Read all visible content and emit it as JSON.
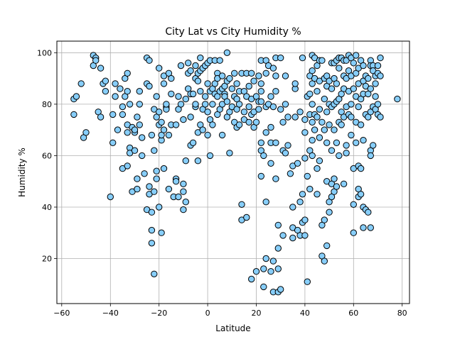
{
  "chart_data": {
    "type": "scatter",
    "title": "City Lat vs City Humidity %",
    "xlabel": "Latitude",
    "ylabel": "Humidity %",
    "xlim": [
      -62,
      83
    ],
    "ylim": [
      2.5,
      104.5
    ],
    "xticks": [
      -60,
      -40,
      -20,
      0,
      20,
      40,
      60,
      80
    ],
    "yticks": [
      20,
      40,
      60,
      80,
      100
    ],
    "grid": true,
    "legend": "none",
    "marker_fill": "#87cefa",
    "marker_edge": "#000000",
    "points": [
      [
        -55,
        82
      ],
      [
        -55,
        76
      ],
      [
        -54,
        83
      ],
      [
        -52,
        88
      ],
      [
        -51,
        67
      ],
      [
        -50,
        69
      ],
      [
        -47,
        99
      ],
      [
        -47,
        95
      ],
      [
        -46,
        98
      ],
      [
        -46,
        97
      ],
      [
        -45,
        77
      ],
      [
        -44,
        75
      ],
      [
        -44,
        94
      ],
      [
        -43,
        88
      ],
      [
        -42,
        85
      ],
      [
        -42,
        89
      ],
      [
        -40,
        44
      ],
      [
        -39,
        65
      ],
      [
        -39,
        76
      ],
      [
        -38,
        88
      ],
      [
        -38,
        83
      ],
      [
        -37,
        70
      ],
      [
        -36,
        86
      ],
      [
        -35,
        76
      ],
      [
        -35,
        79
      ],
      [
        -35,
        55
      ],
      [
        -34,
        90
      ],
      [
        -34,
        83
      ],
      [
        -33,
        92
      ],
      [
        -33,
        85
      ],
      [
        -33,
        72
      ],
      [
        -33,
        56
      ],
      [
        -33,
        69
      ],
      [
        -32,
        63
      ],
      [
        -32,
        61
      ],
      [
        -32,
        80
      ],
      [
        -31,
        46
      ],
      [
        -31,
        71
      ],
      [
        -30,
        62
      ],
      [
        -30,
        69
      ],
      [
        -30,
        70
      ],
      [
        -29,
        47
      ],
      [
        -29,
        51
      ],
      [
        -29,
        75
      ],
      [
        -28,
        80
      ],
      [
        -28,
        72
      ],
      [
        -28,
        85
      ],
      [
        -27,
        67
      ],
      [
        -27,
        60
      ],
      [
        -26,
        53
      ],
      [
        -25,
        88
      ],
      [
        -25,
        98
      ],
      [
        -25,
        39
      ],
      [
        -24,
        97
      ],
      [
        -24,
        87
      ],
      [
        -24,
        45
      ],
      [
        -24,
        48
      ],
      [
        -23,
        26
      ],
      [
        -23,
        31
      ],
      [
        -23,
        38
      ],
      [
        -23,
        68
      ],
      [
        -22,
        14
      ],
      [
        -22,
        62
      ],
      [
        -22,
        78
      ],
      [
        -22,
        46
      ],
      [
        -21,
        75
      ],
      [
        -21,
        54
      ],
      [
        -21,
        51
      ],
      [
        -21,
        83
      ],
      [
        -20,
        72
      ],
      [
        -20,
        94
      ],
      [
        -20,
        40
      ],
      [
        -20,
        77
      ],
      [
        -19,
        73
      ],
      [
        -19,
        66
      ],
      [
        -19,
        30
      ],
      [
        -19,
        68
      ],
      [
        -18,
        88
      ],
      [
        -18,
        70
      ],
      [
        -18,
        91
      ],
      [
        -18,
        55
      ],
      [
        -17,
        79
      ],
      [
        -17,
        78
      ],
      [
        -17,
        80
      ],
      [
        -16,
        68
      ],
      [
        -16,
        47
      ],
      [
        -16,
        92
      ],
      [
        -15,
        90
      ],
      [
        -15,
        72
      ],
      [
        -15,
        84
      ],
      [
        -14,
        44
      ],
      [
        -13,
        72
      ],
      [
        -13,
        51
      ],
      [
        -13,
        50
      ],
      [
        -12,
        44
      ],
      [
        -12,
        78
      ],
      [
        -12,
        83
      ],
      [
        -11,
        80
      ],
      [
        -11,
        95
      ],
      [
        -10,
        74
      ],
      [
        -10,
        49
      ],
      [
        -10,
        46
      ],
      [
        -10,
        39
      ],
      [
        -9,
        42
      ],
      [
        -9,
        58
      ],
      [
        -9,
        82
      ],
      [
        -8,
        96
      ],
      [
        -8,
        92
      ],
      [
        -8,
        86
      ],
      [
        -7,
        93
      ],
      [
        -7,
        75
      ],
      [
        -7,
        84
      ],
      [
        -7,
        64
      ],
      [
        -6,
        65
      ],
      [
        -6,
        84
      ],
      [
        -5,
        90
      ],
      [
        -5,
        95
      ],
      [
        -5,
        79
      ],
      [
        -5,
        80
      ],
      [
        -4,
        89
      ],
      [
        -4,
        92
      ],
      [
        -4,
        58
      ],
      [
        -4,
        69
      ],
      [
        -3,
        98
      ],
      [
        -3,
        93
      ],
      [
        -3,
        85
      ],
      [
        -3,
        72
      ],
      [
        -2,
        94
      ],
      [
        -2,
        78
      ],
      [
        -2,
        70
      ],
      [
        -1,
        83
      ],
      [
        -1,
        80
      ],
      [
        -1,
        95
      ],
      [
        0,
        96
      ],
      [
        0,
        88
      ],
      [
        0,
        77
      ],
      [
        0,
        68
      ],
      [
        1,
        97
      ],
      [
        1,
        85
      ],
      [
        1,
        74
      ],
      [
        1,
        60
      ],
      [
        2,
        86
      ],
      [
        2,
        80
      ],
      [
        2,
        72
      ],
      [
        3,
        97
      ],
      [
        3,
        88
      ],
      [
        3,
        84
      ],
      [
        4,
        92
      ],
      [
        4,
        90
      ],
      [
        4,
        83
      ],
      [
        4,
        76
      ],
      [
        5,
        97
      ],
      [
        5,
        85
      ],
      [
        5,
        78
      ],
      [
        6,
        91
      ],
      [
        6,
        86
      ],
      [
        6,
        80
      ],
      [
        6,
        68
      ],
      [
        7,
        87
      ],
      [
        7,
        84
      ],
      [
        7,
        83
      ],
      [
        8,
        100
      ],
      [
        8,
        89
      ],
      [
        8,
        81
      ],
      [
        8,
        75
      ],
      [
        9,
        90
      ],
      [
        9,
        77
      ],
      [
        9,
        61
      ],
      [
        10,
        86
      ],
      [
        10,
        79
      ],
      [
        11,
        92
      ],
      [
        11,
        83
      ],
      [
        11,
        73
      ],
      [
        12,
        88
      ],
      [
        12,
        82
      ],
      [
        12,
        78
      ],
      [
        12,
        71
      ],
      [
        13,
        85
      ],
      [
        13,
        80
      ],
      [
        13,
        72
      ],
      [
        14,
        92
      ],
      [
        14,
        41
      ],
      [
        14,
        35
      ],
      [
        15,
        85
      ],
      [
        15,
        77
      ],
      [
        15,
        74
      ],
      [
        16,
        92
      ],
      [
        16,
        83
      ],
      [
        16,
        36
      ],
      [
        17,
        87
      ],
      [
        17,
        79
      ],
      [
        17,
        73
      ],
      [
        18,
        92
      ],
      [
        18,
        82
      ],
      [
        18,
        76
      ],
      [
        18,
        12
      ],
      [
        19,
        89
      ],
      [
        19,
        77
      ],
      [
        19,
        71
      ],
      [
        20,
        83
      ],
      [
        20,
        73
      ],
      [
        20,
        15
      ],
      [
        21,
        91
      ],
      [
        21,
        81
      ],
      [
        21,
        78
      ],
      [
        22,
        97
      ],
      [
        22,
        88
      ],
      [
        22,
        85
      ],
      [
        22,
        81
      ],
      [
        22,
        65
      ],
      [
        22,
        62
      ],
      [
        22,
        52
      ],
      [
        23,
        9
      ],
      [
        23,
        16
      ],
      [
        23,
        60
      ],
      [
        24,
        97
      ],
      [
        24,
        92
      ],
      [
        24,
        79
      ],
      [
        24,
        69
      ],
      [
        24,
        42
      ],
      [
        24,
        20
      ],
      [
        25,
        95
      ],
      [
        25,
        80
      ],
      [
        26,
        83
      ],
      [
        26,
        71
      ],
      [
        26,
        15
      ],
      [
        26,
        65
      ],
      [
        26,
        57
      ],
      [
        27,
        7
      ],
      [
        27,
        19
      ],
      [
        27,
        94
      ],
      [
        27,
        79
      ],
      [
        28,
        98
      ],
      [
        28,
        85
      ],
      [
        28,
        91
      ],
      [
        28,
        65
      ],
      [
        28,
        51
      ],
      [
        29,
        16
      ],
      [
        29,
        24
      ],
      [
        29,
        33
      ],
      [
        29,
        7
      ],
      [
        30,
        98
      ],
      [
        30,
        78
      ],
      [
        30,
        8
      ],
      [
        31,
        73
      ],
      [
        31,
        62
      ],
      [
        31,
        29
      ],
      [
        32,
        80
      ],
      [
        32,
        61
      ],
      [
        32,
        91
      ],
      [
        33,
        75
      ],
      [
        33,
        64
      ],
      [
        34,
        53
      ],
      [
        35,
        56
      ],
      [
        35,
        40
      ],
      [
        35,
        28
      ],
      [
        35,
        32
      ],
      [
        36,
        86
      ],
      [
        36,
        75
      ],
      [
        36,
        88
      ],
      [
        37,
        31
      ],
      [
        37,
        57
      ],
      [
        38,
        77
      ],
      [
        38,
        42
      ],
      [
        38,
        29
      ],
      [
        39,
        45
      ],
      [
        39,
        34
      ],
      [
        39,
        98
      ],
      [
        40,
        29
      ],
      [
        40,
        74
      ],
      [
        40,
        59
      ],
      [
        40,
        69
      ],
      [
        40,
        35
      ],
      [
        41,
        83
      ],
      [
        41,
        11
      ],
      [
        41,
        52
      ],
      [
        42,
        84
      ],
      [
        42,
        76
      ],
      [
        42,
        91
      ],
      [
        42,
        62
      ],
      [
        42,
        47
      ],
      [
        43,
        99
      ],
      [
        43,
        93
      ],
      [
        43,
        88
      ],
      [
        43,
        80
      ],
      [
        43,
        73
      ],
      [
        43,
        66
      ],
      [
        43,
        60
      ],
      [
        44,
        98
      ],
      [
        44,
        90
      ],
      [
        44,
        76
      ],
      [
        44,
        70
      ],
      [
        45,
        95
      ],
      [
        45,
        85
      ],
      [
        45,
        75
      ],
      [
        45,
        55
      ],
      [
        45,
        45
      ],
      [
        46,
        97
      ],
      [
        46,
        89
      ],
      [
        46,
        78
      ],
      [
        46,
        67
      ],
      [
        46,
        58
      ],
      [
        47,
        97
      ],
      [
        47,
        73
      ],
      [
        47,
        33
      ],
      [
        47,
        21
      ],
      [
        48,
        90
      ],
      [
        48,
        82
      ],
      [
        48,
        70
      ],
      [
        48,
        35
      ],
      [
        48,
        19
      ],
      [
        49,
        91
      ],
      [
        49,
        87
      ],
      [
        49,
        77
      ],
      [
        49,
        65
      ],
      [
        49,
        50
      ],
      [
        49,
        25
      ],
      [
        50,
        89
      ],
      [
        50,
        80
      ],
      [
        50,
        72
      ],
      [
        50,
        42
      ],
      [
        50,
        38
      ],
      [
        51,
        96
      ],
      [
        51,
        86
      ],
      [
        51,
        79
      ],
      [
        51,
        62
      ],
      [
        51,
        49
      ],
      [
        51,
        44
      ],
      [
        52,
        96
      ],
      [
        52,
        90
      ],
      [
        52,
        80
      ],
      [
        52,
        70
      ],
      [
        52,
        51
      ],
      [
        52,
        46
      ],
      [
        53,
        97
      ],
      [
        53,
        88
      ],
      [
        53,
        81
      ],
      [
        53,
        65
      ],
      [
        53,
        48
      ],
      [
        54,
        98
      ],
      [
        54,
        94
      ],
      [
        54,
        82
      ],
      [
        54,
        73
      ],
      [
        54,
        60
      ],
      [
        55,
        98
      ],
      [
        55,
        84
      ],
      [
        55,
        77
      ],
      [
        55,
        72
      ],
      [
        56,
        97
      ],
      [
        56,
        91
      ],
      [
        56,
        86
      ],
      [
        56,
        75
      ],
      [
        56,
        49
      ],
      [
        57,
        97
      ],
      [
        57,
        90
      ],
      [
        57,
        79
      ],
      [
        57,
        64
      ],
      [
        57,
        61
      ],
      [
        58,
        99
      ],
      [
        58,
        93
      ],
      [
        58,
        85
      ],
      [
        58,
        76
      ],
      [
        59,
        98
      ],
      [
        59,
        91
      ],
      [
        59,
        80
      ],
      [
        59,
        75
      ],
      [
        59,
        68
      ],
      [
        60,
        96
      ],
      [
        60,
        86
      ],
      [
        60,
        55
      ],
      [
        60,
        41
      ],
      [
        60,
        30
      ],
      [
        61,
        99
      ],
      [
        61,
        92
      ],
      [
        61,
        83
      ],
      [
        61,
        73
      ],
      [
        61,
        65
      ],
      [
        62,
        94
      ],
      [
        62,
        88
      ],
      [
        62,
        79
      ],
      [
        62,
        56
      ],
      [
        62,
        47
      ],
      [
        62,
        44
      ],
      [
        63,
        97
      ],
      [
        63,
        82
      ],
      [
        63,
        72
      ],
      [
        63,
        55
      ],
      [
        63,
        45
      ],
      [
        64,
        95
      ],
      [
        64,
        89
      ],
      [
        64,
        84
      ],
      [
        64,
        66
      ],
      [
        64,
        40
      ],
      [
        64,
        32
      ],
      [
        65,
        91
      ],
      [
        65,
        87
      ],
      [
        65,
        76
      ],
      [
        65,
        39
      ],
      [
        66,
        90
      ],
      [
        66,
        84
      ],
      [
        66,
        75
      ],
      [
        66,
        38
      ],
      [
        67,
        97
      ],
      [
        67,
        95
      ],
      [
        67,
        86
      ],
      [
        67,
        77
      ],
      [
        67,
        62
      ],
      [
        67,
        60
      ],
      [
        67,
        32
      ],
      [
        68,
        95
      ],
      [
        68,
        93
      ],
      [
        68,
        79
      ],
      [
        68,
        64
      ],
      [
        69,
        91
      ],
      [
        69,
        88
      ],
      [
        69,
        83
      ],
      [
        69,
        78
      ],
      [
        70,
        95
      ],
      [
        70,
        92
      ],
      [
        70,
        80
      ],
      [
        70,
        76
      ],
      [
        71,
        98
      ],
      [
        71,
        91
      ],
      [
        71,
        75
      ],
      [
        78,
        82
      ]
    ]
  }
}
